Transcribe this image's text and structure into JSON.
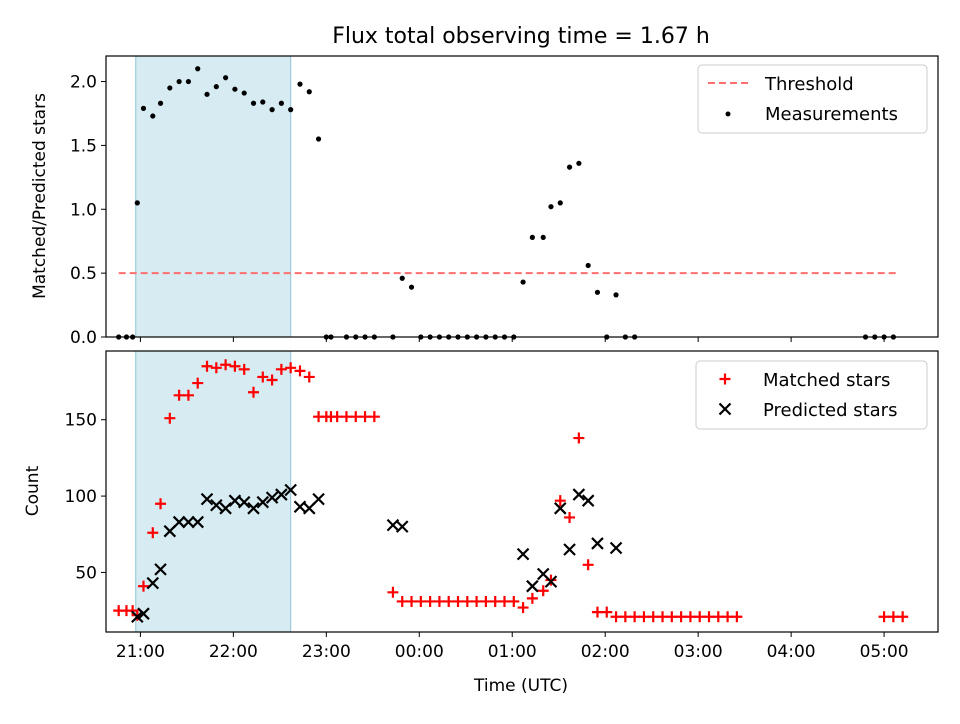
{
  "title": "Flux total observing time = 1.67 h",
  "colors": {
    "threshold": "#ff6f6f",
    "measurements": "#000000",
    "matched": "#ff0000",
    "predicted": "#000000",
    "shade": "#add8e6"
  },
  "chart_data": [
    {
      "type": "scatter",
      "ylabel": "Matched/Predicted stars",
      "xlim": [
        20.63,
        5.58
      ],
      "ylim": [
        0,
        2.2
      ],
      "yticks": [
        0.0,
        0.5,
        1.0,
        1.5,
        2.0
      ],
      "ytick_labels": [
        "0.0",
        "0.5",
        "1.0",
        "1.5",
        "2.0"
      ],
      "shaded_interval": [
        "20:57",
        "22:37"
      ],
      "legend": {
        "position": "top-right",
        "entries": [
          "Threshold",
          "Measurements"
        ]
      },
      "threshold": {
        "name": "Threshold",
        "y": 0.5,
        "x": [
          "20:46",
          "05:09"
        ]
      },
      "series": [
        {
          "name": "Measurements",
          "x": [
            "20:46",
            "20:51",
            "20:55",
            "20:58",
            "21:02",
            "21:08",
            "21:13",
            "21:19",
            "21:25",
            "21:31",
            "21:37",
            "21:43",
            "21:49",
            "21:55",
            "22:01",
            "22:07",
            "22:13",
            "22:19",
            "22:25",
            "22:31",
            "22:37",
            "22:43",
            "22:49",
            "22:55",
            "23:00",
            "23:03",
            "23:13",
            "23:19",
            "23:25",
            "23:31",
            "23:43",
            "23:49",
            "23:55",
            "24:01",
            "24:07",
            "24:13",
            "24:19",
            "24:25",
            "24:31",
            "24:37",
            "24:43",
            "24:49",
            "24:55",
            "25:01",
            "25:07",
            "25:13",
            "25:20",
            "25:25",
            "25:31",
            "25:37",
            "25:43",
            "25:49",
            "25:55",
            "26:01",
            "26:07",
            "26:13",
            "26:19",
            "28:48",
            "28:54",
            "29:00",
            "29:06"
          ],
          "y": [
            0.0,
            0.0,
            0.0,
            1.05,
            1.79,
            1.73,
            1.83,
            1.95,
            2.0,
            2.0,
            2.1,
            1.9,
            1.96,
            2.03,
            1.94,
            1.91,
            1.83,
            1.84,
            1.78,
            1.83,
            1.78,
            1.98,
            1.92,
            1.55,
            0.0,
            0.0,
            0.0,
            0.0,
            0.0,
            0.0,
            0.0,
            0.46,
            0.39,
            0.0,
            0.0,
            0.0,
            0.0,
            0.0,
            0.0,
            0.0,
            0.0,
            0.0,
            0.0,
            0.0,
            0.43,
            0.78,
            0.78,
            1.02,
            1.05,
            1.33,
            1.36,
            0.56,
            0.35,
            0.0,
            0.33,
            0.0,
            0.0,
            0.0,
            0.0,
            0.0,
            0.0
          ]
        }
      ]
    },
    {
      "type": "scatter",
      "xlabel": "Time (UTC)",
      "ylabel": "Count",
      "xlim": [
        20.63,
        5.58
      ],
      "ylim": [
        11,
        195
      ],
      "yticks": [
        50,
        100,
        150
      ],
      "ytick_labels": [
        "50",
        "100",
        "150"
      ],
      "xticks": [
        "21:00",
        "22:00",
        "23:00",
        "00:00",
        "01:00",
        "02:00",
        "03:00",
        "04:00",
        "05:00"
      ],
      "shaded_interval": [
        "20:57",
        "22:37"
      ],
      "legend": {
        "position": "top-right",
        "entries": [
          "Matched stars",
          "Predicted stars"
        ]
      },
      "series": [
        {
          "name": "Matched stars",
          "marker": "plus",
          "points": [
            [
              "20:46",
              25
            ],
            [
              "20:51",
              25
            ],
            [
              "20:55",
              25
            ],
            [
              "20:58",
              22
            ],
            [
              "21:02",
              41
            ],
            [
              "21:08",
              76
            ],
            [
              "21:13",
              95
            ],
            [
              "21:19",
              151
            ],
            [
              "21:25",
              166
            ],
            [
              "21:31",
              166
            ],
            [
              "21:37",
              174
            ],
            [
              "21:43",
              185
            ],
            [
              "21:49",
              184
            ],
            [
              "21:55",
              186
            ],
            [
              "22:01",
              185
            ],
            [
              "22:07",
              183
            ],
            [
              "22:13",
              168
            ],
            [
              "22:19",
              178
            ],
            [
              "22:25",
              176
            ],
            [
              "22:31",
              183
            ],
            [
              "22:37",
              184
            ],
            [
              "22:43",
              182
            ],
            [
              "22:49",
              178
            ],
            [
              "22:55",
              152
            ],
            [
              "23:00",
              152
            ],
            [
              "23:03",
              152
            ],
            [
              "23:07",
              152
            ],
            [
              "23:13",
              152
            ],
            [
              "23:19",
              152
            ],
            [
              "23:25",
              152
            ],
            [
              "23:31",
              152
            ],
            [
              "23:43",
              37
            ],
            [
              "23:49",
              31
            ],
            [
              "23:55",
              31
            ],
            [
              "24:01",
              31
            ],
            [
              "24:07",
              31
            ],
            [
              "24:13",
              31
            ],
            [
              "24:19",
              31
            ],
            [
              "24:25",
              31
            ],
            [
              "24:31",
              31
            ],
            [
              "24:37",
              31
            ],
            [
              "24:43",
              31
            ],
            [
              "24:49",
              31
            ],
            [
              "24:55",
              31
            ],
            [
              "25:01",
              31
            ],
            [
              "25:07",
              27
            ],
            [
              "25:13",
              33
            ],
            [
              "25:20",
              38
            ],
            [
              "25:25",
              45
            ],
            [
              "25:31",
              97
            ],
            [
              "25:37",
              86
            ],
            [
              "25:43",
              138
            ],
            [
              "25:49",
              55
            ],
            [
              "25:55",
              24
            ],
            [
              "26:01",
              24
            ],
            [
              "26:07",
              21
            ],
            [
              "26:13",
              21
            ],
            [
              "26:19",
              21
            ],
            [
              "26:25",
              21
            ],
            [
              "26:31",
              21
            ],
            [
              "26:37",
              21
            ],
            [
              "26:43",
              21
            ],
            [
              "26:49",
              21
            ],
            [
              "26:55",
              21
            ],
            [
              "27:01",
              21
            ],
            [
              "27:07",
              21
            ],
            [
              "27:13",
              21
            ],
            [
              "27:19",
              21
            ],
            [
              "27:25",
              21
            ],
            [
              "29:00",
              21
            ],
            [
              "29:06",
              21
            ],
            [
              "29:12",
              21
            ]
          ]
        },
        {
          "name": "Predicted stars",
          "marker": "x",
          "points": [
            [
              "20:58",
              21
            ],
            [
              "21:02",
              23
            ],
            [
              "21:08",
              43
            ],
            [
              "21:13",
              52
            ],
            [
              "21:19",
              77
            ],
            [
              "21:25",
              83
            ],
            [
              "21:31",
              83
            ],
            [
              "21:37",
              83
            ],
            [
              "21:43",
              98
            ],
            [
              "21:49",
              94
            ],
            [
              "21:55",
              92
            ],
            [
              "22:01",
              97
            ],
            [
              "22:07",
              96
            ],
            [
              "22:13",
              92
            ],
            [
              "22:19",
              96
            ],
            [
              "22:25",
              99
            ],
            [
              "22:31",
              101
            ],
            [
              "22:37",
              104
            ],
            [
              "22:43",
              93
            ],
            [
              "22:49",
              92
            ],
            [
              "22:55",
              98
            ],
            [
              "23:43",
              81
            ],
            [
              "23:49",
              80
            ],
            [
              "25:07",
              62
            ],
            [
              "25:13",
              41
            ],
            [
              "25:20",
              49
            ],
            [
              "25:25",
              44
            ],
            [
              "25:31",
              92
            ],
            [
              "25:37",
              65
            ],
            [
              "25:43",
              101
            ],
            [
              "25:49",
              97
            ],
            [
              "25:55",
              69
            ],
            [
              "26:07",
              66
            ]
          ]
        }
      ]
    }
  ]
}
